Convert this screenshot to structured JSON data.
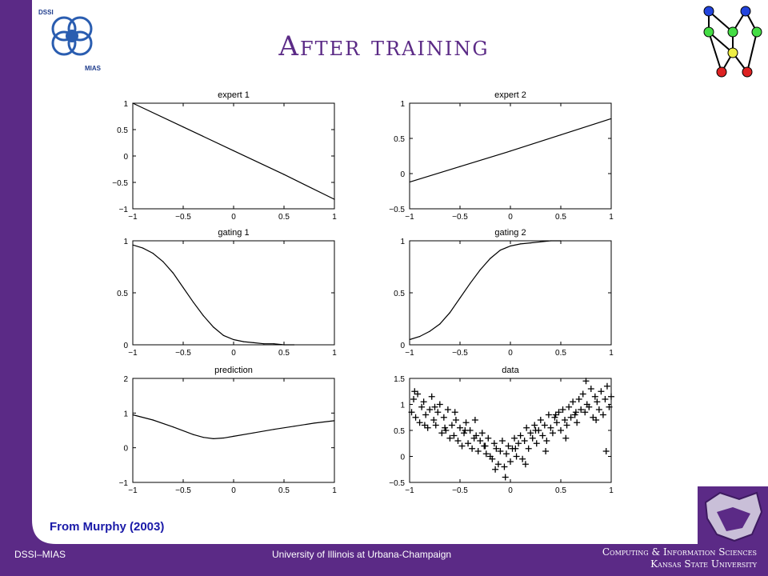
{
  "slide": {
    "title": "After training",
    "credit": "From Murphy (2003)",
    "logo_left_top": "DSSI",
    "logo_left_bottom": "MIAS"
  },
  "footer": {
    "left": "DSSI–MIAS",
    "center": "University of Illinois at Urbana-Champaign",
    "right_line1": "Computing & Information Sciences",
    "right_line2": "Kansas State University"
  },
  "colors": {
    "slide_bg": "#5b2a86",
    "panel_bg": "#ffffff",
    "title": "#5b2a86",
    "credit": "#1a1aa8"
  },
  "chart_data": [
    {
      "type": "line",
      "title": "expert 1",
      "xlim": [
        -1,
        1
      ],
      "ylim": [
        -1,
        1
      ],
      "xticks": [
        "−1",
        "−0.5",
        "0",
        "0.5",
        "1"
      ],
      "yticks": [
        "1",
        "0.5",
        "0",
        "−0.5",
        "−1"
      ],
      "x": [
        -1,
        -0.5,
        0,
        0.5,
        1
      ],
      "y": [
        1.0,
        0.55,
        0.1,
        -0.35,
        -0.82
      ]
    },
    {
      "type": "line",
      "title": "expert 2",
      "xlim": [
        -1,
        1
      ],
      "ylim": [
        -0.5,
        1
      ],
      "xticks": [
        "−1",
        "−0.5",
        "0",
        "0.5",
        "1"
      ],
      "yticks": [
        "1",
        "0.5",
        "0",
        "−0.5"
      ],
      "x": [
        -1,
        -0.5,
        0,
        0.5,
        1
      ],
      "y": [
        -0.12,
        0.1,
        0.32,
        0.55,
        0.78
      ]
    },
    {
      "type": "line",
      "title": "gating 1",
      "xlim": [
        -1,
        1
      ],
      "ylim": [
        0,
        1
      ],
      "xticks": [
        "−1",
        "−0.5",
        "0",
        "0.5",
        "1"
      ],
      "yticks": [
        "1",
        "0.5",
        "0"
      ],
      "x": [
        -1,
        -0.9,
        -0.8,
        -0.7,
        -0.6,
        -0.5,
        -0.4,
        -0.3,
        -0.2,
        -0.1,
        0,
        0.1,
        0.2,
        0.3,
        0.4,
        0.5,
        0.6
      ],
      "y": [
        0.96,
        0.93,
        0.88,
        0.8,
        0.69,
        0.55,
        0.41,
        0.28,
        0.17,
        0.09,
        0.05,
        0.03,
        0.02,
        0.01,
        0.01,
        0.0,
        0.0
      ]
    },
    {
      "type": "line",
      "title": "gating 2",
      "xlim": [
        -1,
        1
      ],
      "ylim": [
        0,
        1
      ],
      "xticks": [
        "−1",
        "−0.5",
        "0",
        "0.5",
        "1"
      ],
      "yticks": [
        "1",
        "0.5",
        "0"
      ],
      "x": [
        -1,
        -0.9,
        -0.8,
        -0.7,
        -0.6,
        -0.5,
        -0.4,
        -0.3,
        -0.2,
        -0.1,
        0,
        0.1,
        0.2,
        0.3,
        0.4,
        0.5
      ],
      "y": [
        0.05,
        0.08,
        0.13,
        0.2,
        0.31,
        0.45,
        0.59,
        0.72,
        0.83,
        0.91,
        0.95,
        0.97,
        0.98,
        0.99,
        1.0,
        1.0
      ]
    },
    {
      "type": "line",
      "title": "prediction",
      "xlim": [
        -1,
        1
      ],
      "ylim": [
        -1,
        2
      ],
      "xticks": [
        "−1",
        "−0.5",
        "0",
        "0.5",
        "1"
      ],
      "yticks": [
        "2",
        "1",
        "0",
        "−1"
      ],
      "x": [
        -1,
        -0.8,
        -0.6,
        -0.4,
        -0.3,
        -0.2,
        -0.1,
        0,
        0.2,
        0.4,
        0.6,
        0.8,
        1
      ],
      "y": [
        0.95,
        0.8,
        0.6,
        0.38,
        0.3,
        0.26,
        0.28,
        0.33,
        0.43,
        0.53,
        0.62,
        0.71,
        0.78
      ]
    },
    {
      "type": "scatter",
      "title": "data",
      "xlim": [
        -1,
        1
      ],
      "ylim": [
        -0.5,
        1.5
      ],
      "xticks": [
        "−1",
        "−0.5",
        "0",
        "0.5",
        "1"
      ],
      "yticks": [
        "1.5",
        "1",
        "0.5",
        "0",
        "−0.5"
      ],
      "x": [
        -0.98,
        -0.96,
        -0.94,
        -0.92,
        -0.9,
        -0.88,
        -0.86,
        -0.84,
        -0.82,
        -0.8,
        -0.78,
        -0.76,
        -0.74,
        -0.72,
        -0.7,
        -0.68,
        -0.66,
        -0.64,
        -0.62,
        -0.6,
        -0.58,
        -0.56,
        -0.54,
        -0.52,
        -0.5,
        -0.48,
        -0.46,
        -0.44,
        -0.42,
        -0.4,
        -0.38,
        -0.36,
        -0.34,
        -0.32,
        -0.3,
        -0.28,
        -0.26,
        -0.24,
        -0.22,
        -0.2,
        -0.18,
        -0.16,
        -0.14,
        -0.12,
        -0.1,
        -0.08,
        -0.06,
        -0.04,
        -0.02,
        0.0,
        0.02,
        0.04,
        0.06,
        0.08,
        0.1,
        0.12,
        0.14,
        0.16,
        0.18,
        0.2,
        0.22,
        0.24,
        0.26,
        0.28,
        0.3,
        0.32,
        0.34,
        0.36,
        0.38,
        0.4,
        0.42,
        0.44,
        0.46,
        0.48,
        0.5,
        0.52,
        0.54,
        0.56,
        0.58,
        0.6,
        0.62,
        0.64,
        0.66,
        0.68,
        0.7,
        0.72,
        0.74,
        0.76,
        0.78,
        0.8,
        0.82,
        0.84,
        0.86,
        0.88,
        0.9,
        0.92,
        0.94,
        0.96,
        0.98,
        1.0,
        -0.95,
        -0.85,
        -0.75,
        -0.65,
        -0.55,
        -0.45,
        -0.35,
        -0.25,
        -0.15,
        -0.05,
        0.05,
        0.15,
        0.25,
        0.35,
        0.45,
        0.55,
        0.65,
        0.75,
        0.85,
        0.95
      ],
      "y": [
        0.85,
        1.1,
        0.75,
        1.2,
        0.65,
        0.95,
        1.05,
        0.8,
        0.55,
        0.9,
        1.15,
        0.7,
        0.6,
        0.85,
        1.0,
        0.45,
        0.75,
        0.5,
        0.9,
        0.35,
        0.6,
        0.4,
        0.7,
        0.3,
        0.55,
        0.2,
        0.45,
        0.65,
        0.25,
        0.5,
        0.15,
        0.35,
        0.4,
        0.1,
        0.3,
        0.45,
        0.2,
        0.05,
        0.35,
        0.0,
        -0.05,
        0.25,
        0.15,
        -0.15,
        0.1,
        0.3,
        -0.2,
        0.05,
        0.2,
        -0.1,
        0.15,
        0.35,
        0.0,
        0.25,
        0.4,
        -0.05,
        0.3,
        0.55,
        0.15,
        0.45,
        0.35,
        0.6,
        0.25,
        0.5,
        0.7,
        0.4,
        0.6,
        0.3,
        0.8,
        0.55,
        0.45,
        0.75,
        0.65,
        0.85,
        0.5,
        0.9,
        0.7,
        0.6,
        0.95,
        0.75,
        1.05,
        0.8,
        0.65,
        1.1,
        0.9,
        1.2,
        0.85,
        1.0,
        0.95,
        1.3,
        0.75,
        1.15,
        1.05,
        0.9,
        1.25,
        0.8,
        1.1,
        1.35,
        0.95,
        1.15,
        1.25,
        0.6,
        0.95,
        0.55,
        0.85,
        0.5,
        0.7,
        0.2,
        -0.25,
        -0.4,
        0.15,
        -0.15,
        0.5,
        0.1,
        0.8,
        0.35,
        0.85,
        1.45,
        0.7,
        0.1
      ]
    }
  ]
}
